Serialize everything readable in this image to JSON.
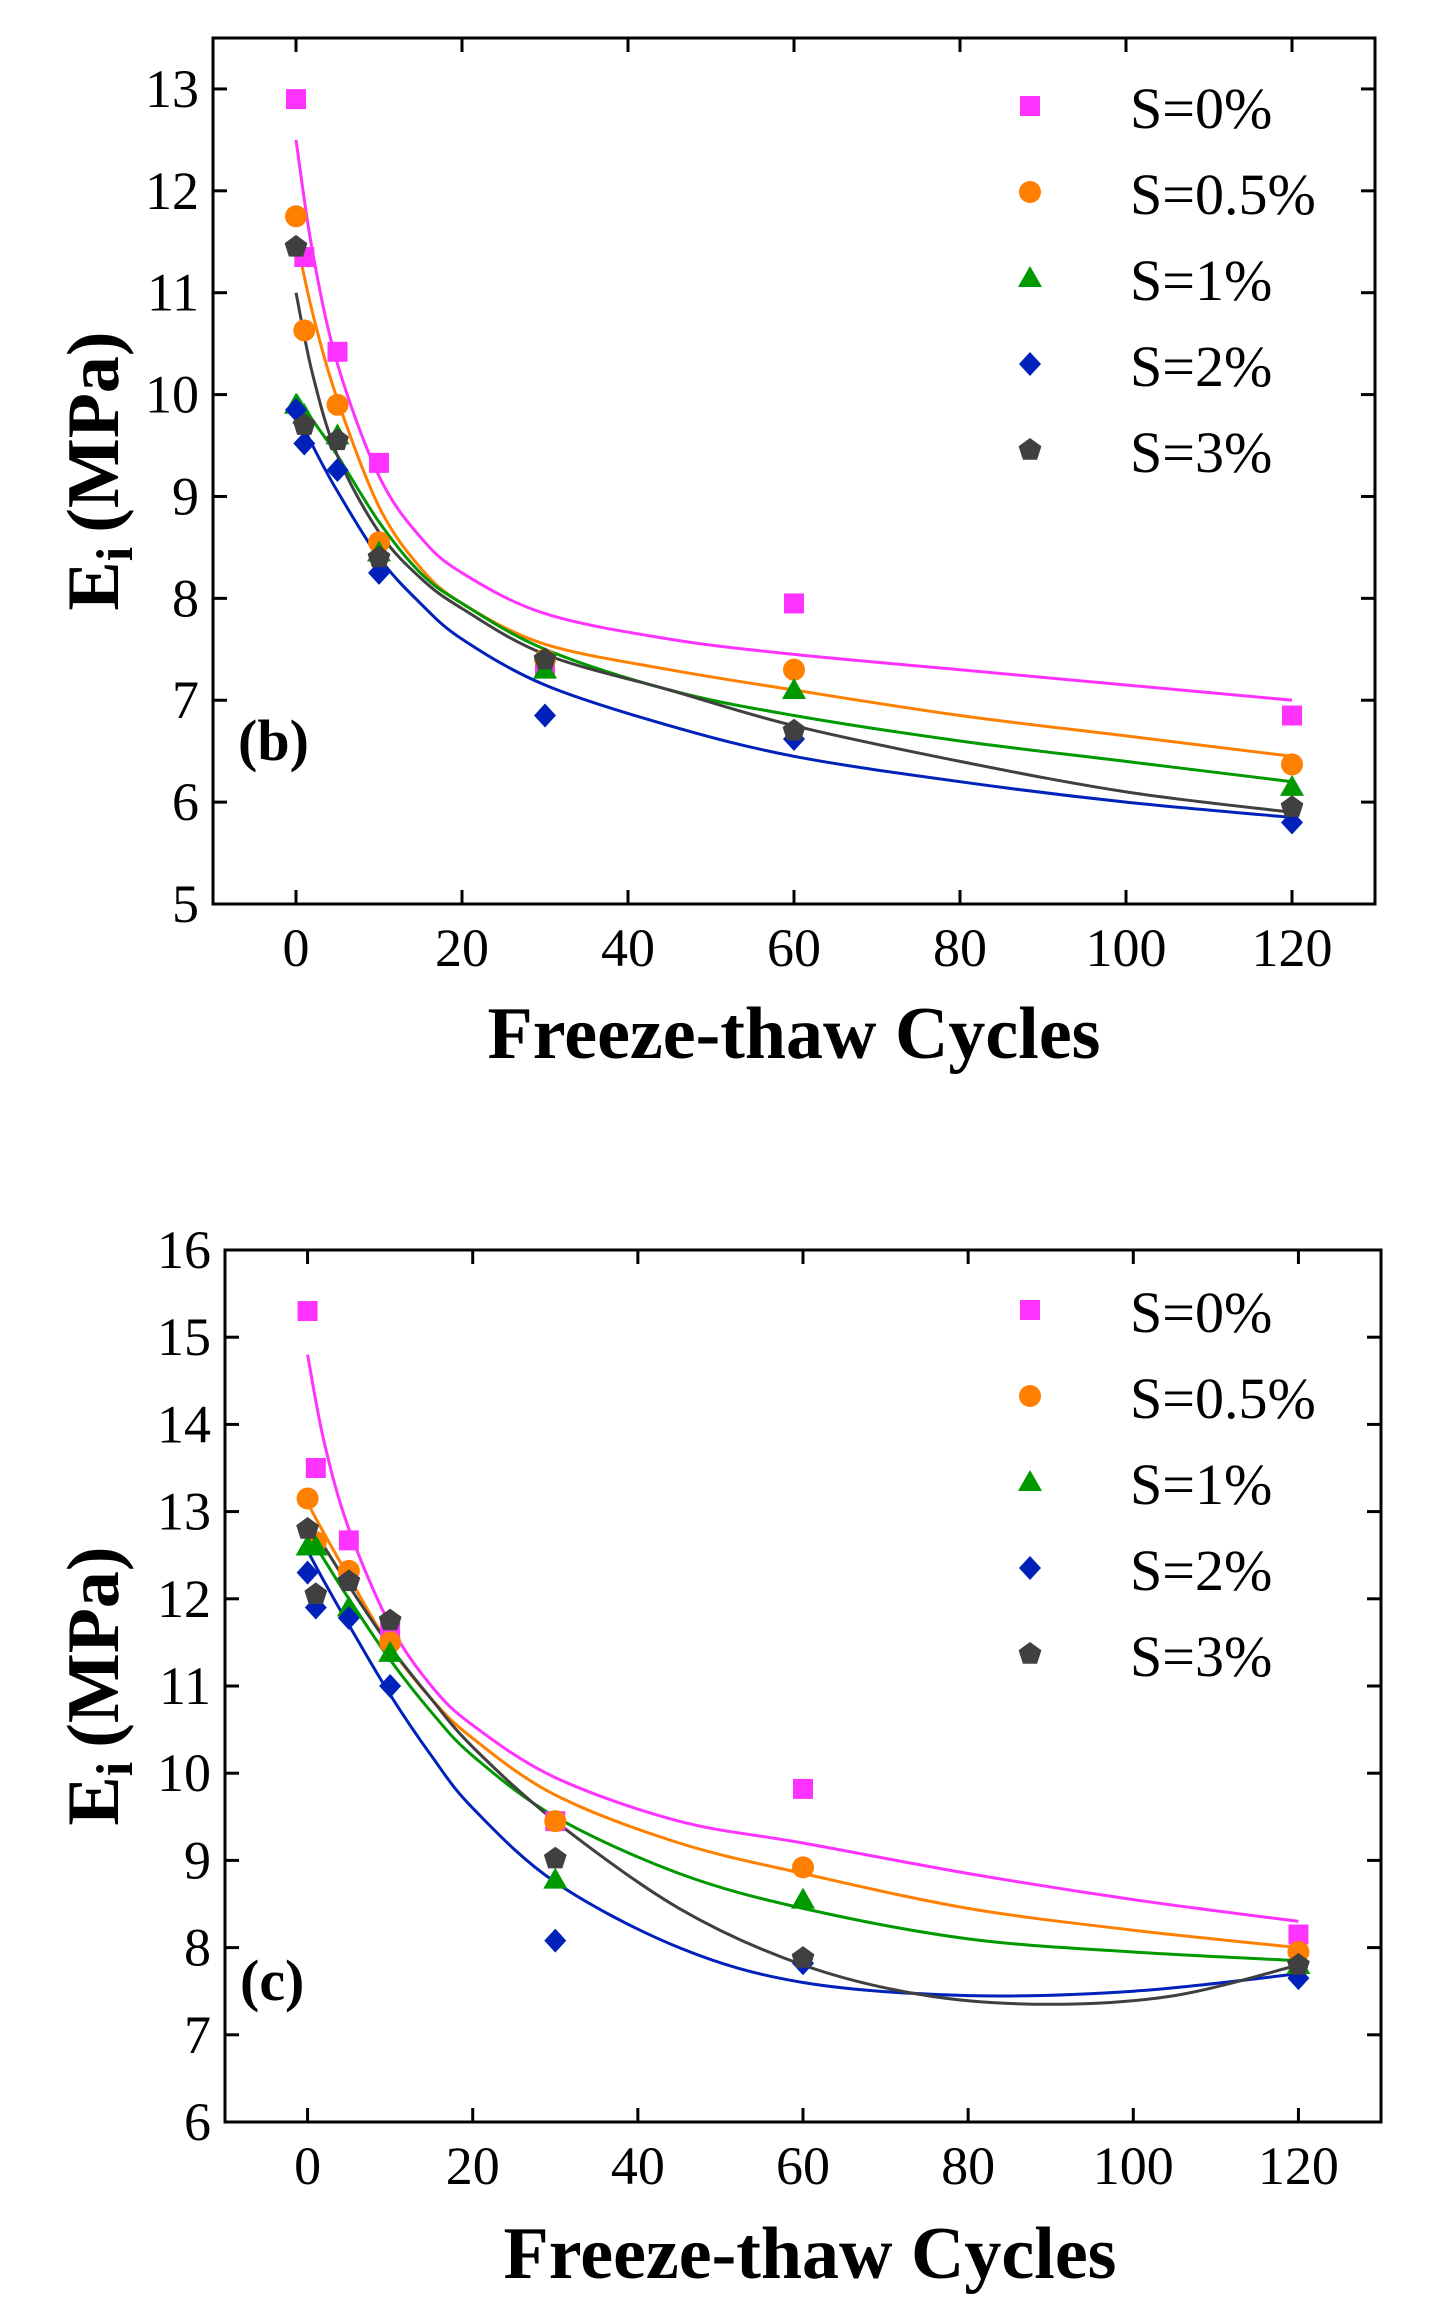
{
  "chart_data": [
    {
      "type": "scatter",
      "panel_label": "(b)",
      "ylabel": "E",
      "ylabel_sub": "i",
      "ylabel_unit": "(MPa)",
      "xlabel": "Freeze-thaw Cycles",
      "xlim": [
        -10,
        130
      ],
      "ylim": [
        5,
        13.5
      ],
      "xticks": [
        0,
        20,
        40,
        60,
        80,
        100,
        120
      ],
      "yticks": [
        5,
        6,
        7,
        8,
        9,
        10,
        11,
        12,
        13
      ],
      "legend_position": "top-right",
      "x": [
        0,
        1,
        5,
        10,
        30,
        60,
        120
      ],
      "series": [
        {
          "name": "S=0%",
          "marker": "square",
          "color": "#ff33ff",
          "values": [
            12.9,
            11.35,
            10.42,
            9.33,
            7.35,
            7.95,
            6.85
          ],
          "fit": [
            [
              0,
              12.5
            ],
            [
              2,
              11.4
            ],
            [
              5,
              10.3
            ],
            [
              10,
              9.2
            ],
            [
              15,
              8.6
            ],
            [
              20,
              8.25
            ],
            [
              30,
              7.85
            ],
            [
              45,
              7.6
            ],
            [
              60,
              7.45
            ],
            [
              80,
              7.3
            ],
            [
              100,
              7.15
            ],
            [
              120,
              7.0
            ]
          ]
        },
        {
          "name": "S=0.5%",
          "marker": "circle",
          "color": "#ff8000",
          "values": [
            11.75,
            10.63,
            9.9,
            8.55,
            7.4,
            7.3,
            6.37
          ],
          "fit": [
            [
              0,
              11.55
            ],
            [
              2,
              10.8
            ],
            [
              5,
              9.95
            ],
            [
              10,
              8.9
            ],
            [
              15,
              8.3
            ],
            [
              20,
              7.95
            ],
            [
              30,
              7.55
            ],
            [
              45,
              7.3
            ],
            [
              60,
              7.1
            ],
            [
              80,
              6.85
            ],
            [
              100,
              6.65
            ],
            [
              120,
              6.45
            ]
          ]
        },
        {
          "name": "S=1%",
          "marker": "triangle",
          "color": "#009900",
          "values": [
            9.9,
            9.8,
            9.6,
            8.45,
            7.3,
            7.1,
            6.15
          ],
          "fit": [
            [
              0,
              10.0
            ],
            [
              2,
              9.75
            ],
            [
              5,
              9.4
            ],
            [
              10,
              8.75
            ],
            [
              15,
              8.25
            ],
            [
              20,
              7.95
            ],
            [
              30,
              7.5
            ],
            [
              45,
              7.1
            ],
            [
              60,
              6.85
            ],
            [
              80,
              6.6
            ],
            [
              100,
              6.4
            ],
            [
              120,
              6.2
            ]
          ]
        },
        {
          "name": "S=2%",
          "marker": "diamond",
          "color": "#0022bb",
          "values": [
            9.85,
            9.52,
            9.26,
            8.25,
            6.85,
            6.62,
            5.8
          ],
          "fit": [
            [
              0,
              9.85
            ],
            [
              2,
              9.5
            ],
            [
              5,
              9.05
            ],
            [
              10,
              8.4
            ],
            [
              15,
              7.95
            ],
            [
              20,
              7.6
            ],
            [
              30,
              7.15
            ],
            [
              45,
              6.75
            ],
            [
              60,
              6.45
            ],
            [
              80,
              6.2
            ],
            [
              100,
              6.0
            ],
            [
              120,
              5.85
            ]
          ]
        },
        {
          "name": "S=3%",
          "marker": "pentagon",
          "color": "#404040",
          "values": [
            11.45,
            9.7,
            9.55,
            8.4,
            7.4,
            6.7,
            5.95
          ],
          "fit": [
            [
              0,
              11.0
            ],
            [
              2,
              10.2
            ],
            [
              5,
              9.4
            ],
            [
              10,
              8.65
            ],
            [
              15,
              8.2
            ],
            [
              20,
              7.9
            ],
            [
              30,
              7.45
            ],
            [
              45,
              7.1
            ],
            [
              60,
              6.75
            ],
            [
              80,
              6.4
            ],
            [
              100,
              6.1
            ],
            [
              120,
              5.9
            ]
          ]
        }
      ]
    },
    {
      "type": "scatter",
      "panel_label": "(c)",
      "ylabel": "E",
      "ylabel_sub": "i",
      "ylabel_unit": "(MPa)",
      "xlabel": "Freeze-thaw Cycles",
      "xlim": [
        -10,
        130
      ],
      "ylim": [
        6,
        16
      ],
      "xticks": [
        0,
        20,
        40,
        60,
        80,
        100,
        120
      ],
      "yticks": [
        6,
        7,
        8,
        9,
        10,
        11,
        12,
        13,
        14,
        15,
        16
      ],
      "legend_position": "top-right",
      "x": [
        0,
        1,
        5,
        10,
        30,
        60,
        120
      ],
      "series": [
        {
          "name": "S=0%",
          "marker": "square",
          "color": "#ff33ff",
          "values": [
            15.3,
            13.5,
            12.67,
            11.65,
            9.45,
            9.82,
            8.15
          ],
          "fit": [
            [
              0,
              14.8
            ],
            [
              2,
              13.8
            ],
            [
              5,
              12.8
            ],
            [
              10,
              11.7
            ],
            [
              15,
              11.0
            ],
            [
              20,
              10.55
            ],
            [
              30,
              9.95
            ],
            [
              45,
              9.45
            ],
            [
              60,
              9.2
            ],
            [
              80,
              8.85
            ],
            [
              100,
              8.55
            ],
            [
              120,
              8.3
            ]
          ]
        },
        {
          "name": "S=0.5%",
          "marker": "circle",
          "color": "#ff8000",
          "values": [
            13.15,
            12.65,
            12.32,
            11.5,
            9.45,
            8.92,
            7.95
          ],
          "fit": [
            [
              0,
              13.1
            ],
            [
              2,
              12.75
            ],
            [
              5,
              12.25
            ],
            [
              10,
              11.45
            ],
            [
              15,
              10.85
            ],
            [
              20,
              10.4
            ],
            [
              30,
              9.75
            ],
            [
              45,
              9.2
            ],
            [
              60,
              8.85
            ],
            [
              80,
              8.45
            ],
            [
              100,
              8.2
            ],
            [
              120,
              8.0
            ]
          ]
        },
        {
          "name": "S=1%",
          "marker": "triangle",
          "color": "#009900",
          "values": [
            12.6,
            12.6,
            11.9,
            11.38,
            8.78,
            8.55,
            7.8
          ],
          "fit": [
            [
              0,
              12.75
            ],
            [
              2,
              12.45
            ],
            [
              5,
              12.0
            ],
            [
              10,
              11.3
            ],
            [
              15,
              10.7
            ],
            [
              20,
              10.2
            ],
            [
              30,
              9.5
            ],
            [
              45,
              8.85
            ],
            [
              60,
              8.45
            ],
            [
              80,
              8.1
            ],
            [
              100,
              7.95
            ],
            [
              120,
              7.85
            ]
          ]
        },
        {
          "name": "S=2%",
          "marker": "diamond",
          "color": "#0022bb",
          "values": [
            12.3,
            11.9,
            11.78,
            11.0,
            8.08,
            7.82,
            7.65
          ],
          "fit": [
            [
              0,
              12.55
            ],
            [
              2,
              12.2
            ],
            [
              5,
              11.7
            ],
            [
              10,
              10.9
            ],
            [
              15,
              10.2
            ],
            [
              20,
              9.6
            ],
            [
              30,
              8.75
            ],
            [
              45,
              8.0
            ],
            [
              60,
              7.6
            ],
            [
              80,
              7.45
            ],
            [
              100,
              7.5
            ],
            [
              120,
              7.7
            ]
          ]
        },
        {
          "name": "S=3%",
          "marker": "pentagon",
          "color": "#404040",
          "values": [
            12.8,
            12.05,
            12.2,
            11.75,
            9.02,
            7.88,
            7.8
          ],
          "fit": [
            [
              0,
              12.9
            ],
            [
              2,
              12.6
            ],
            [
              5,
              12.15
            ],
            [
              10,
              11.45
            ],
            [
              15,
              10.85
            ],
            [
              20,
              10.3
            ],
            [
              30,
              9.45
            ],
            [
              45,
              8.45
            ],
            [
              60,
              7.8
            ],
            [
              75,
              7.45
            ],
            [
              90,
              7.35
            ],
            [
              105,
              7.45
            ],
            [
              120,
              7.8
            ]
          ]
        }
      ]
    }
  ]
}
